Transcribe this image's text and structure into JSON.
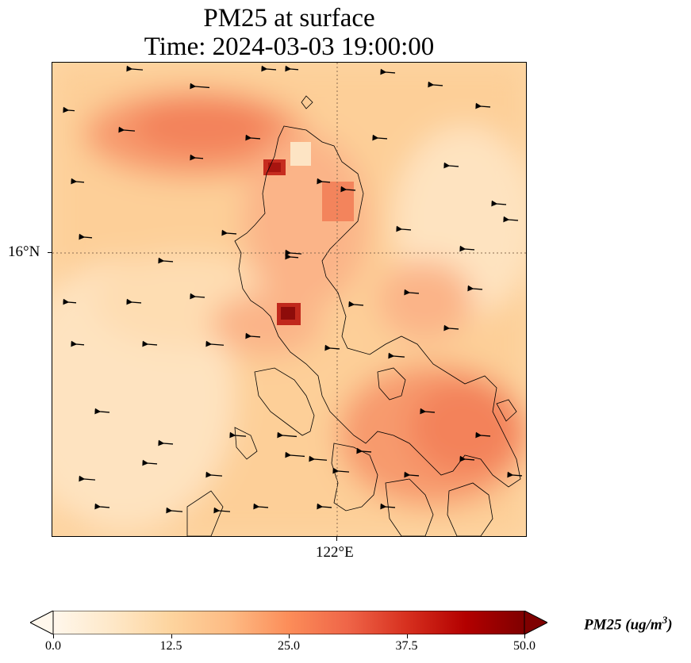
{
  "title_line1": "PM25 at surface",
  "title_line2": "Time: 2024-03-03 19:00:00",
  "lat_label": "16°N",
  "lon_label": "122°E",
  "colorbar": {
    "label_text": "PM25 (ug/m",
    "label_sup": "3",
    "label_close": ")",
    "ticks": [
      "0.0",
      "12.5",
      "25.0",
      "37.5",
      "50.0"
    ],
    "tick_values": [
      0,
      12.5,
      25,
      37.5,
      50
    ],
    "min": 0,
    "max": 50,
    "extend": "both",
    "colormap": "OrRd",
    "colors": [
      "#fff7ec",
      "#fee8c8",
      "#fdd49e",
      "#fdbb84",
      "#fc8d59",
      "#ef6548",
      "#d7301f",
      "#b30000",
      "#7f0000"
    ]
  },
  "map": {
    "background_level": 14,
    "hotspots": [
      {
        "name": "northwest plume",
        "value": 32
      },
      {
        "name": "northern luzon peak",
        "value": 44
      },
      {
        "name": "central luzon peak",
        "value": 48
      },
      {
        "name": "southeast band",
        "value": 30
      }
    ],
    "gridline_color": "#8a6d52",
    "coastline_color": "#000000",
    "wind_vectors": "black arrows, mostly westward"
  }
}
